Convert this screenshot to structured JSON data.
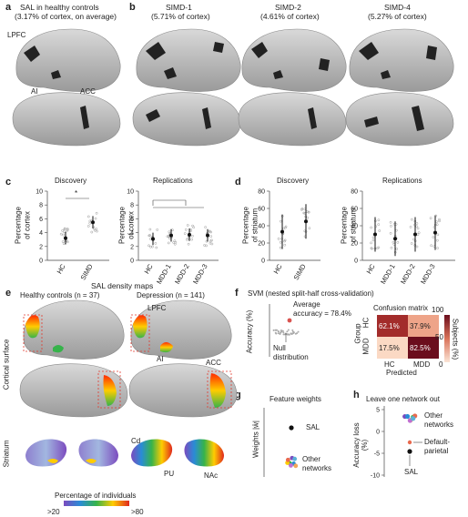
{
  "panel_labels": {
    "a": "a",
    "b": "b",
    "c": "c",
    "d": "d",
    "e": "e",
    "f": "f",
    "g": "g",
    "h": "h"
  },
  "a": {
    "title_line1": "SAL in healthy controls",
    "title_line2": "(3.17% of cortex, on average)",
    "label_lpfc": "LPFC",
    "label_ai": "AI",
    "label_acc": "ACC"
  },
  "b": {
    "subjects": [
      {
        "name": "SIMD-1",
        "pct": "(5.71% of cortex)"
      },
      {
        "name": "SIMD-2",
        "pct": "(4.61% of cortex)"
      },
      {
        "name": "SIMD-4",
        "pct": "(5.27% of cortex)"
      }
    ]
  },
  "c": {
    "title_discovery": "Discovery",
    "title_replications": "Replications",
    "ylabel_line1": "Percentage",
    "ylabel_line2": "of cortex",
    "star": "*"
  },
  "d": {
    "title_discovery": "Discovery",
    "title_replications": "Replications",
    "ylabel_line1": "Percentage",
    "ylabel_line2": "of striatum"
  },
  "e": {
    "title": "SAL density maps",
    "group_hc": "Healthy controls (n = 37)",
    "group_dep": "Depression (n = 141)",
    "row_cortical": "Cortical surface",
    "row_striatum": "Striatum",
    "label_lpfc": "LPFC",
    "label_ai": "AI",
    "label_acc": "ACC",
    "label_cd": "Cd",
    "label_pu": "PU",
    "label_nac": "NAc",
    "colorbar_title": "Percentage of individuals",
    "colorbar_min": ">20",
    "colorbar_max": ">80"
  },
  "f": {
    "title": "SVM (nested split-half cross-validation)",
    "ylabel": "Accuracy (%)",
    "annot_line1": "Average",
    "annot_line2": "accuracy = 78.4%",
    "null_line1": "Null",
    "null_line2": "distribution",
    "cm_title": "Confusion matrix",
    "cm_ylabel": "Group",
    "cm_xlabel": "Predicted",
    "cm_row_labels": [
      "HC",
      "MDD"
    ],
    "cm_col_labels": [
      "HC",
      "MDD"
    ],
    "cm_values": [
      "62.1%",
      "37.9%",
      "17.5%",
      "82.5%"
    ],
    "cbar_title": "Subjects (%)",
    "cbar_max": "100",
    "cbar_mid": "50",
    "cbar_min": "0",
    "accent": "#d9534f"
  },
  "g": {
    "title": "Feature weights",
    "ylabel": "Weights |ŵ|",
    "label_sal": "SAL",
    "label_other1": "Other",
    "label_other2": "networks"
  },
  "h": {
    "title": "Leave one network out",
    "ylabel": "Accuracy loss (%)",
    "label_other1": "Other",
    "label_other2": "networks",
    "label_dp1": "Default-",
    "label_dp2": "parietal",
    "label_sal": "SAL"
  },
  "chart_data": [
    {
      "type": "scatter",
      "title": "Discovery",
      "ylabel": "Percentage of cortex",
      "categories": [
        "HC",
        "SIMD"
      ],
      "ylim": [
        0,
        10
      ],
      "yticks": [
        0,
        2,
        4,
        6,
        8,
        10
      ],
      "means": [
        3.2,
        5.5
      ],
      "significance": "*"
    },
    {
      "type": "scatter",
      "title": "Replications",
      "ylabel": "Percentage of cortex",
      "categories": [
        "HC",
        "MDD-1",
        "MDD-2",
        "MDD-3"
      ],
      "ylim": [
        0,
        10
      ],
      "yticks": [
        0,
        2,
        4,
        6,
        8,
        10
      ],
      "means": [
        3.1,
        3.6,
        3.7,
        3.6
      ],
      "significance": "*"
    },
    {
      "type": "scatter",
      "title": "Discovery",
      "ylabel": "Percentage of striatum",
      "categories": [
        "HC",
        "SIMD"
      ],
      "ylim": [
        0,
        80
      ],
      "yticks": [
        0,
        20,
        40,
        60,
        80
      ],
      "means": [
        33,
        45
      ]
    },
    {
      "type": "scatter",
      "title": "Replications",
      "ylabel": "Percentage of striatum",
      "categories": [
        "HC",
        "MDD-1",
        "MDD-2",
        "MDD-3"
      ],
      "ylim": [
        0,
        80
      ],
      "yticks": [
        0,
        20,
        40,
        60,
        80
      ],
      "means": [
        30,
        25,
        30,
        32
      ]
    },
    {
      "type": "scatter",
      "title": "Leave one network out",
      "ylabel": "Accuracy loss (%)",
      "ylim": [
        -10,
        5
      ],
      "yticks": [
        5,
        0,
        -5,
        -10
      ],
      "points": [
        {
          "name": "Default-parietal",
          "value": -0.8
        },
        {
          "name": "SAL",
          "value": -2.4
        }
      ]
    }
  ]
}
